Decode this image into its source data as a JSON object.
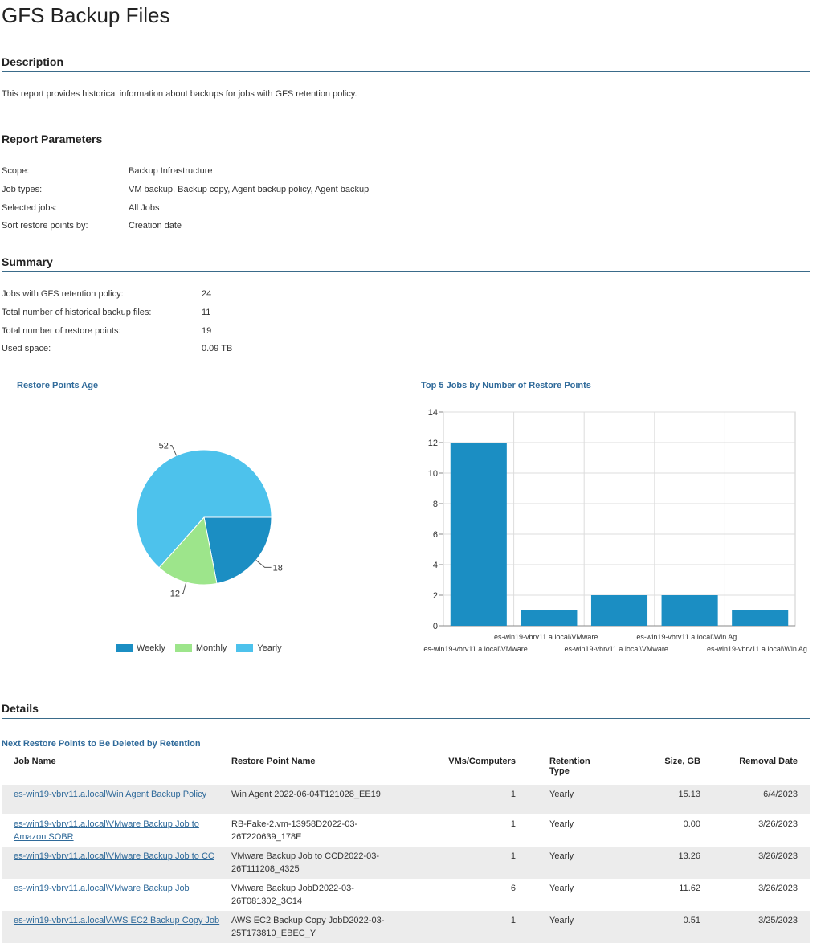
{
  "page_title": "GFS Backup Files",
  "description": {
    "heading": "Description",
    "text": "This report provides historical information about backups for jobs with GFS retention policy."
  },
  "parameters": {
    "heading": "Report Parameters",
    "rows": [
      {
        "label": "Scope:",
        "value": "Backup Infrastructure"
      },
      {
        "label": "Job types:",
        "value": "VM backup, Backup copy, Agent backup policy, Agent backup"
      },
      {
        "label": "Selected jobs:",
        "value": "All Jobs"
      },
      {
        "label": "Sort restore points by:",
        "value": "Creation date"
      }
    ]
  },
  "summary": {
    "heading": "Summary",
    "rows": [
      {
        "label": "Jobs with GFS retention policy:",
        "value": "24"
      },
      {
        "label": "Total number of historical backup files:",
        "value": "11"
      },
      {
        "label": "Total number of restore points:",
        "value": "19"
      },
      {
        "label": "Used space:",
        "value": "0.09 TB"
      }
    ]
  },
  "chart_data": [
    {
      "type": "pie",
      "title": "Restore Points Age",
      "categories": [
        "Weekly",
        "Monthly",
        "Yearly"
      ],
      "values": [
        18,
        12,
        52
      ],
      "data_labels": [
        "18",
        "12",
        "52"
      ],
      "colors": [
        "#1b8ec3",
        "#9de58b",
        "#4dc2ec"
      ],
      "legend": "bottom"
    },
    {
      "type": "bar",
      "title": "Top 5 Jobs by Number of Restore Points",
      "categories": [
        "es-win19-vbrv11.a.local\\VMware...",
        "es-win19-vbrv11.a.local\\VMware...",
        "es-win19-vbrv11.a.local\\VMware...",
        "es-win19-vbrv11.a.local\\Win Ag...",
        "es-win19-vbrv11.a.local\\Win Ag..."
      ],
      "values": [
        12,
        1,
        2,
        2,
        1
      ],
      "ylim": [
        0,
        14
      ],
      "yticks": [
        "0",
        "2",
        "4",
        "6",
        "8",
        "10",
        "12",
        "14"
      ],
      "grid": true,
      "color": "#1b8ec3"
    }
  ],
  "details": {
    "heading": "Details",
    "table_title": "Next Restore Points to Be Deleted by Retention",
    "columns": [
      "Job Name",
      "Restore Point Name",
      "VMs/Computers",
      "Retention Type",
      "Size, GB",
      "Removal Date"
    ],
    "rows": [
      [
        "es-win19-vbrv11.a.local\\Win Agent Backup Policy",
        "Win Agent 2022-06-04T121028_EE19",
        "1",
        "Yearly",
        "15.13",
        "6/4/2023"
      ],
      [
        "es-win19-vbrv11.a.local\\VMware Backup Job to Amazon SOBR",
        "RB-Fake-2.vm-13958D2022-03-26T220639_178E",
        "1",
        "Yearly",
        "0.00",
        "3/26/2023"
      ],
      [
        "es-win19-vbrv11.a.local\\VMware Backup Job to CC",
        "VMware Backup Job to CCD2022-03-26T111208_4325",
        "1",
        "Yearly",
        "13.26",
        "3/26/2023"
      ],
      [
        "es-win19-vbrv11.a.local\\VMware Backup Job",
        "VMware Backup JobD2022-03-26T081302_3C14",
        "6",
        "Yearly",
        "11.62",
        "3/26/2023"
      ],
      [
        "es-win19-vbrv11.a.local\\AWS EC2 Backup Copy Job",
        "AWS EC2 Backup Copy JobD2022-03-25T173810_EBEC_Y",
        "1",
        "Yearly",
        "0.51",
        "3/25/2023"
      ]
    ]
  }
}
